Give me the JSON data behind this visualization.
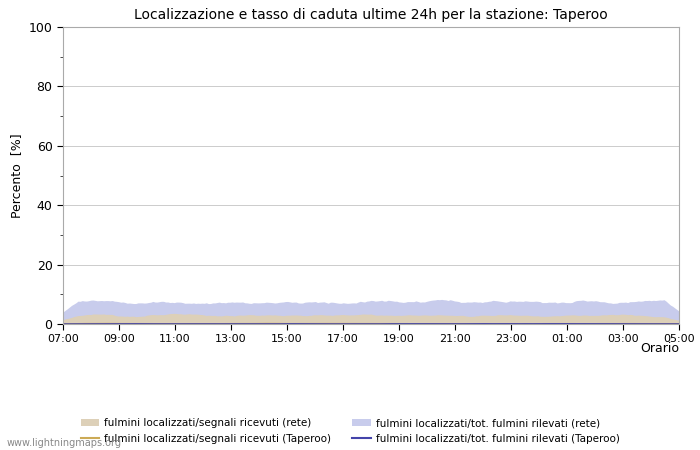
{
  "title": "Localizzazione e tasso di caduta ultime 24h per la stazione: Taperoo",
  "ylabel": "Percento  [%]",
  "xlabel": "Orario",
  "watermark": "www.lightningmaps.org",
  "ylim": [
    0,
    100
  ],
  "yticks": [
    0,
    20,
    40,
    60,
    80,
    100
  ],
  "yminor_ticks": [
    10,
    30,
    50,
    70,
    90
  ],
  "xtick_labels": [
    "07:00",
    "09:00",
    "11:00",
    "13:00",
    "15:00",
    "17:00",
    "19:00",
    "21:00",
    "23:00",
    "01:00",
    "03:00",
    "05:00"
  ],
  "n_points": 289,
  "color_fill_rete": "#ddd0b8",
  "color_fill_taperoo": "#c8ccec",
  "color_line_rete": "#ccaa55",
  "color_line_taperoo": "#4444aa",
  "legend_labels": [
    "fulmini localizzati/segnali ricevuti (rete)",
    "fulmini localizzati/segnali ricevuti (Taperoo)",
    "fulmini localizzati/tot. fulmini rilevati (rete)",
    "fulmini localizzati/tot. fulmini rilevati (Taperoo)"
  ],
  "bg_color": "#ffffff",
  "grid_color": "#cccccc",
  "spine_color": "#aaaaaa"
}
